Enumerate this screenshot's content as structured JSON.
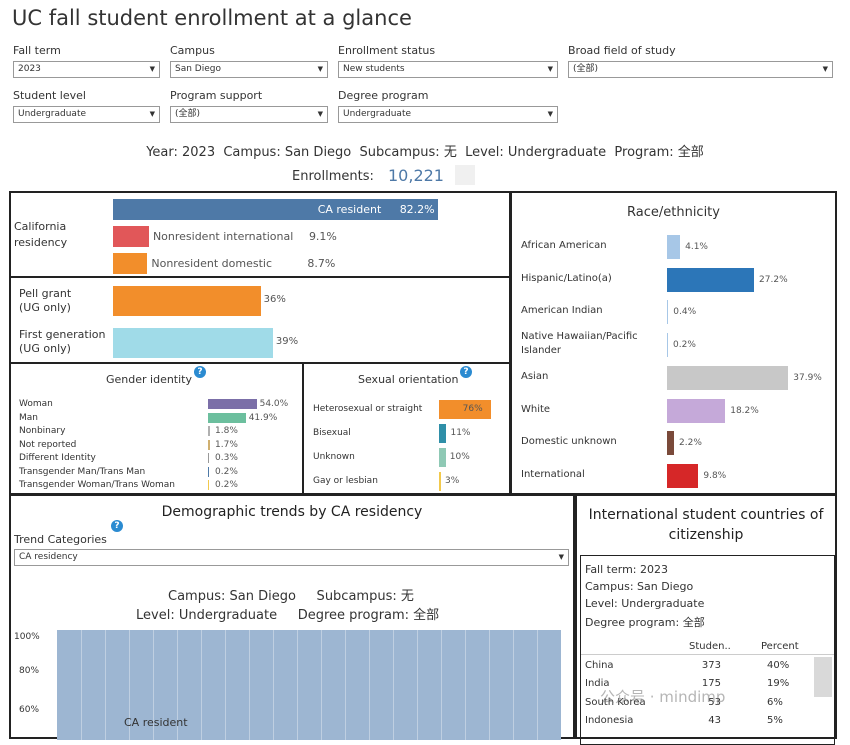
{
  "title": "UC fall student enrollment at a glance",
  "filters": {
    "fall_term": {
      "label": "Fall term",
      "value": "2023"
    },
    "campus": {
      "label": "Campus",
      "value": "San Diego"
    },
    "enrollment_status": {
      "label": "Enrollment status",
      "value": "New students"
    },
    "field_of_study": {
      "label": "Broad field of study",
      "value": "(全部)"
    },
    "student_level": {
      "label": "Student level",
      "value": "Undergraduate"
    },
    "program_support": {
      "label": "Program support",
      "value": "(全部)"
    },
    "degree_program": {
      "label": "Degree program",
      "value": "Undergraduate"
    }
  },
  "summary": {
    "line": "Year: 2023  Campus: San Diego  Subcampus: 无  Level: Undergraduate  Program: 全部",
    "enrollments_label": "Enrollments:",
    "enrollments_value": "10,221"
  },
  "residency": {
    "label": "California residency",
    "items": [
      {
        "name": "CA resident",
        "value": "82.2%",
        "pct": 82.2,
        "color": "#4e79a7"
      },
      {
        "name": "Nonresident international",
        "value": "9.1%",
        "pct": 9.1,
        "color": "#e15759"
      },
      {
        "name": "Nonresident domestic",
        "value": "8.7%",
        "pct": 8.7,
        "color": "#f28e2b"
      }
    ]
  },
  "pell": {
    "label": "Pell grant\n(UG only)",
    "value": "36%",
    "pct": 36,
    "color": "#f28e2b"
  },
  "firstgen": {
    "label": "First generation\n(UG only)",
    "value": "39%",
    "pct": 39,
    "color": "#a0dbe8"
  },
  "gender": {
    "title": "Gender identity",
    "items": [
      {
        "name": "Woman",
        "value": "54.0%",
        "pct": 54.0,
        "color": "#7b6fa8"
      },
      {
        "name": "Man",
        "value": "41.9%",
        "pct": 41.9,
        "color": "#6cbf9e"
      },
      {
        "name": "Nonbinary",
        "value": "1.8%",
        "pct": 1.8,
        "color": "#b0b0b0"
      },
      {
        "name": "Not reported",
        "value": "1.7%",
        "pct": 1.7,
        "color": "#d0b070"
      },
      {
        "name": "Different Identity",
        "value": "0.3%",
        "pct": 0.3,
        "color": "#999"
      },
      {
        "name": "Transgender Man/Trans Man",
        "value": "0.2%",
        "pct": 0.2,
        "color": "#4e79a7"
      },
      {
        "name": "Transgender Woman/Trans Woman",
        "value": "0.2%",
        "pct": 0.2,
        "color": "#f2c94c"
      }
    ]
  },
  "orientation": {
    "title": "Sexual orientation",
    "items": [
      {
        "name": "Heterosexual or straight",
        "value": "76%",
        "pct": 76,
        "color": "#f28e2b"
      },
      {
        "name": "Bisexual",
        "value": "11%",
        "pct": 11,
        "color": "#2f8fa8"
      },
      {
        "name": "Unknown",
        "value": "10%",
        "pct": 10,
        "color": "#8fc9b5"
      },
      {
        "name": "Gay or lesbian",
        "value": "3%",
        "pct": 3,
        "color": "#f2c94c"
      }
    ]
  },
  "race": {
    "title": "Race/ethnicity",
    "items": [
      {
        "name": "African American",
        "value": "4.1%",
        "pct": 4.1,
        "color": "#a7c7e7"
      },
      {
        "name": "Hispanic/Latino(a)",
        "value": "27.2%",
        "pct": 27.2,
        "color": "#2c76b8"
      },
      {
        "name": "American Indian",
        "value": "0.4%",
        "pct": 0.4,
        "color": "#a7c7e7"
      },
      {
        "name": "Native Hawaiian/Pacific Islander",
        "value": "0.2%",
        "pct": 0.2,
        "color": "#a7c7e7"
      },
      {
        "name": "Asian",
        "value": "37.9%",
        "pct": 37.9,
        "color": "#c8c8c8"
      },
      {
        "name": "White",
        "value": "18.2%",
        "pct": 18.2,
        "color": "#c5a9d9"
      },
      {
        "name": "Domestic unknown",
        "value": "2.2%",
        "pct": 2.2,
        "color": "#7a4a3a"
      },
      {
        "name": "International",
        "value": "9.8%",
        "pct": 9.8,
        "color": "#d62728"
      }
    ]
  },
  "trends": {
    "title": "Demographic trends by CA residency",
    "category_label": "Trend Categories",
    "category_value": "CA residency",
    "info1": "Campus: San Diego     Subcampus: 无",
    "info2": "Level: Undergraduate     Degree program: 全部",
    "y_ticks": [
      "100%",
      "80%",
      "60%"
    ],
    "area_label": "CA resident",
    "area_color": "#9db6d2"
  },
  "intl": {
    "title": "International student countries of citizenship",
    "info": [
      "Fall term: 2023",
      "Campus: San Diego",
      "Level: Undergraduate",
      "Degree program: 全部"
    ],
    "col1": "Studen..",
    "col2": "Percent",
    "rows": [
      {
        "country": "China",
        "students": "373",
        "percent": "40%"
      },
      {
        "country": "India",
        "students": "175",
        "percent": "19%"
      },
      {
        "country": "South Korea",
        "students": "53",
        "percent": "6%"
      },
      {
        "country": "Indonesia",
        "students": "43",
        "percent": "5%"
      }
    ]
  },
  "watermark": "公众号 · mindimp"
}
